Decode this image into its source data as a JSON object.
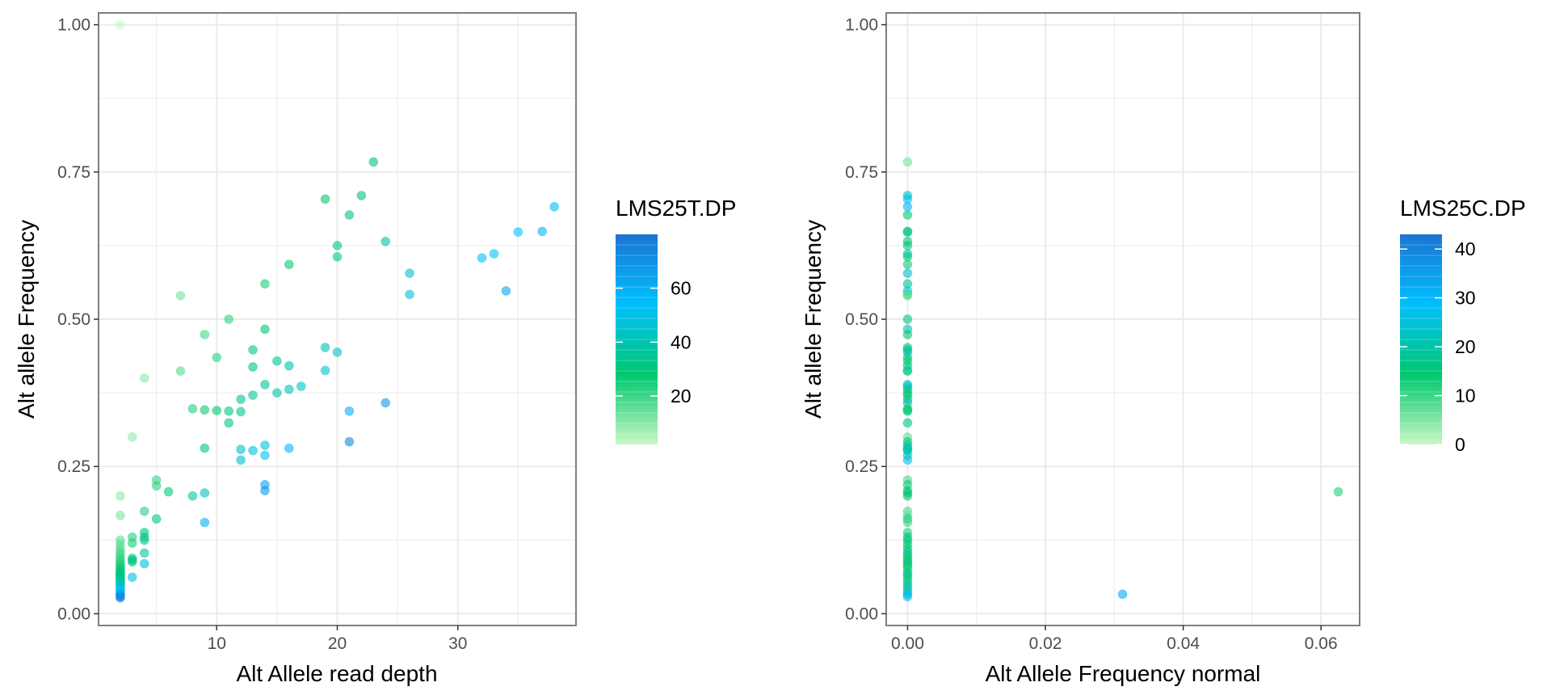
{
  "palette": {
    "grid": "#ebebeb",
    "frame": "#7f7f7f",
    "tick_text": "#4d4d4d",
    "title_text": "#000000",
    "colorscale": [
      "#c8f7c5",
      "#00c86e",
      "#00bfff",
      "#1c74d2"
    ]
  },
  "chart_data": [
    {
      "type": "scatter",
      "xlabel": "Alt Allele read depth",
      "ylabel": "Alt allele Frequency",
      "xlim": [
        0.2,
        39.8
      ],
      "ylim": [
        -0.02,
        1.02
      ],
      "xticks": [
        10,
        20,
        30
      ],
      "xtick_labels": [
        "10",
        "20",
        "30"
      ],
      "yticks": [
        0,
        0.25,
        0.5,
        0.75,
        1.0
      ],
      "ytick_labels": [
        "0.00",
        "0.25",
        "0.50",
        "0.75",
        "1.00"
      ],
      "grid": true,
      "legend": {
        "title": "LMS25T.DP",
        "range": [
          2,
          80
        ],
        "ticks": [
          20,
          40,
          60
        ],
        "tick_labels": [
          "20",
          "40",
          "60"
        ],
        "placement": "right"
      },
      "points": [
        [
          2,
          1.0,
          2
        ],
        [
          2,
          0.2,
          10
        ],
        [
          2,
          0.167,
          12
        ],
        [
          2,
          0.125,
          16
        ],
        [
          2,
          0.118,
          17
        ],
        [
          2,
          0.111,
          18
        ],
        [
          2,
          0.105,
          19
        ],
        [
          2,
          0.1,
          20
        ],
        [
          2,
          0.095,
          21
        ],
        [
          2,
          0.091,
          22
        ],
        [
          2,
          0.087,
          23
        ],
        [
          2,
          0.083,
          24
        ],
        [
          2,
          0.08,
          25
        ],
        [
          2,
          0.077,
          26
        ],
        [
          2,
          0.074,
          27
        ],
        [
          2,
          0.071,
          28
        ],
        [
          2,
          0.069,
          29
        ],
        [
          2,
          0.067,
          30
        ],
        [
          2,
          0.065,
          31
        ],
        [
          2,
          0.063,
          32
        ],
        [
          2,
          0.061,
          33
        ],
        [
          2,
          0.059,
          34
        ],
        [
          2,
          0.057,
          35
        ],
        [
          2,
          0.055,
          36
        ],
        [
          2,
          0.053,
          38
        ],
        [
          2,
          0.05,
          40
        ],
        [
          2,
          0.048,
          42
        ],
        [
          2,
          0.045,
          44
        ],
        [
          2,
          0.042,
          48
        ],
        [
          2,
          0.04,
          50
        ],
        [
          2,
          0.037,
          54
        ],
        [
          2,
          0.035,
          57
        ],
        [
          2,
          0.033,
          60
        ],
        [
          2,
          0.031,
          64
        ],
        [
          2,
          0.029,
          70
        ],
        [
          2,
          0.027,
          75
        ],
        [
          3,
          0.3,
          10
        ],
        [
          3,
          0.13,
          23
        ],
        [
          3,
          0.12,
          25
        ],
        [
          3,
          0.094,
          32
        ],
        [
          3,
          0.088,
          34
        ],
        [
          3,
          0.091,
          33
        ],
        [
          3,
          0.062,
          48
        ],
        [
          4,
          0.4,
          10
        ],
        [
          4,
          0.174,
          23
        ],
        [
          4,
          0.138,
          29
        ],
        [
          4,
          0.13,
          31
        ],
        [
          4,
          0.125,
          32
        ],
        [
          4,
          0.103,
          39
        ],
        [
          4,
          0.085,
          47
        ],
        [
          5,
          0.227,
          22
        ],
        [
          5,
          0.217,
          23
        ],
        [
          5,
          0.161,
          31
        ],
        [
          6,
          0.207,
          29
        ],
        [
          7,
          0.54,
          13
        ],
        [
          7,
          0.412,
          17
        ],
        [
          8,
          0.348,
          23
        ],
        [
          8,
          0.2,
          40
        ],
        [
          9,
          0.474,
          19
        ],
        [
          9,
          0.346,
          26
        ],
        [
          9,
          0.281,
          32
        ],
        [
          9,
          0.205,
          44
        ],
        [
          9,
          0.155,
          58
        ],
        [
          10,
          0.435,
          23
        ],
        [
          10,
          0.345,
          29
        ],
        [
          11,
          0.5,
          22
        ],
        [
          11,
          0.344,
          32
        ],
        [
          11,
          0.324,
          34
        ],
        [
          12,
          0.364,
          33
        ],
        [
          12,
          0.343,
          35
        ],
        [
          12,
          0.279,
          43
        ],
        [
          12,
          0.261,
          46
        ],
        [
          13,
          0.448,
          29
        ],
        [
          13,
          0.419,
          31
        ],
        [
          13,
          0.371,
          35
        ],
        [
          13,
          0.277,
          47
        ],
        [
          14,
          0.56,
          25
        ],
        [
          14,
          0.483,
          29
        ],
        [
          14,
          0.389,
          36
        ],
        [
          14,
          0.286,
          49
        ],
        [
          14,
          0.269,
          52
        ],
        [
          14,
          0.219,
          64
        ],
        [
          14,
          0.209,
          67
        ],
        [
          15,
          0.429,
          35
        ],
        [
          15,
          0.375,
          40
        ],
        [
          16,
          0.593,
          27
        ],
        [
          16,
          0.421,
          38
        ],
        [
          16,
          0.381,
          42
        ],
        [
          16,
          0.281,
          57
        ],
        [
          17,
          0.386,
          44
        ],
        [
          19,
          0.704,
          27
        ],
        [
          19,
          0.452,
          42
        ],
        [
          19,
          0.413,
          46
        ],
        [
          20,
          0.625,
          32
        ],
        [
          20,
          0.606,
          33
        ],
        [
          20,
          0.444,
          45
        ],
        [
          21,
          0.677,
          31
        ],
        [
          21,
          0.344,
          61
        ],
        [
          21,
          0.292,
          72
        ],
        [
          22,
          0.71,
          31
        ],
        [
          23,
          0.767,
          30
        ],
        [
          24,
          0.632,
          38
        ],
        [
          24,
          0.358,
          67
        ],
        [
          26,
          0.578,
          45
        ],
        [
          26,
          0.542,
          48
        ],
        [
          32,
          0.604,
          53
        ],
        [
          33,
          0.611,
          54
        ],
        [
          34,
          0.548,
          62
        ],
        [
          35,
          0.648,
          54
        ],
        [
          37,
          0.649,
          57
        ],
        [
          38,
          0.691,
          55
        ]
      ]
    },
    {
      "type": "scatter",
      "xlabel": "Alt Allele Frequency normal",
      "ylabel": "Alt allele Frequency",
      "xlim": [
        -0.0031,
        0.0656
      ],
      "ylim": [
        -0.02,
        1.02
      ],
      "xticks": [
        0,
        0.02,
        0.04,
        0.06
      ],
      "xtick_labels": [
        "0.00",
        "0.02",
        "0.04",
        "0.06"
      ],
      "yticks": [
        0,
        0.25,
        0.5,
        0.75,
        1.0
      ],
      "ytick_labels": [
        "0.00",
        "0.25",
        "0.50",
        "0.75",
        "1.00"
      ],
      "grid": true,
      "legend": {
        "title": "LMS25C.DP",
        "range": [
          0,
          43
        ],
        "ticks": [
          0,
          10,
          20,
          30,
          40
        ],
        "tick_labels": [
          "0",
          "10",
          "20",
          "30",
          "40"
        ],
        "placement": "right"
      },
      "points": [
        [
          0,
          0.767,
          6
        ],
        [
          0,
          0.71,
          24
        ],
        [
          0,
          0.704,
          27
        ],
        [
          0,
          0.691,
          30
        ],
        [
          0,
          0.677,
          14
        ],
        [
          0,
          0.649,
          20
        ],
        [
          0,
          0.648,
          16
        ],
        [
          0,
          0.632,
          17
        ],
        [
          0,
          0.625,
          15
        ],
        [
          0,
          0.611,
          22
        ],
        [
          0,
          0.606,
          14
        ],
        [
          0,
          0.593,
          13
        ],
        [
          0,
          0.578,
          24
        ],
        [
          0,
          0.56,
          18
        ],
        [
          0,
          0.548,
          26
        ],
        [
          0,
          0.542,
          12
        ],
        [
          0,
          0.54,
          7
        ],
        [
          0,
          0.5,
          16
        ],
        [
          0,
          0.483,
          22
        ],
        [
          0,
          0.474,
          14
        ],
        [
          0,
          0.452,
          13
        ],
        [
          0,
          0.448,
          15
        ],
        [
          0,
          0.444,
          21
        ],
        [
          0,
          0.435,
          16
        ],
        [
          0,
          0.429,
          14
        ],
        [
          0,
          0.421,
          15
        ],
        [
          0,
          0.413,
          24
        ],
        [
          0,
          0.412,
          13
        ],
        [
          0,
          0.389,
          22
        ],
        [
          0,
          0.386,
          26
        ],
        [
          0,
          0.381,
          16
        ],
        [
          0,
          0.375,
          18
        ],
        [
          0,
          0.371,
          14
        ],
        [
          0,
          0.364,
          16
        ],
        [
          0,
          0.358,
          20
        ],
        [
          0,
          0.348,
          13
        ],
        [
          0,
          0.346,
          12
        ],
        [
          0,
          0.344,
          15
        ],
        [
          0,
          0.324,
          16
        ],
        [
          0,
          0.3,
          7
        ],
        [
          0,
          0.292,
          14
        ],
        [
          0,
          0.286,
          20
        ],
        [
          0,
          0.281,
          16
        ],
        [
          0,
          0.279,
          23
        ],
        [
          0,
          0.277,
          22
        ],
        [
          0,
          0.269,
          21
        ],
        [
          0,
          0.261,
          26
        ],
        [
          0,
          0.227,
          9
        ],
        [
          0,
          0.219,
          13
        ],
        [
          0,
          0.209,
          15
        ],
        [
          0,
          0.205,
          16
        ],
        [
          0,
          0.2,
          14
        ],
        [
          0,
          0.174,
          9
        ],
        [
          0,
          0.167,
          7
        ],
        [
          0,
          0.161,
          13
        ],
        [
          0,
          0.155,
          10
        ],
        [
          0,
          0.138,
          12
        ],
        [
          0,
          0.13,
          15
        ],
        [
          0,
          0.125,
          16
        ],
        [
          0,
          0.118,
          14
        ],
        [
          0,
          0.111,
          15
        ],
        [
          0,
          0.105,
          18
        ],
        [
          0,
          0.1,
          16
        ],
        [
          0,
          0.095,
          13
        ],
        [
          0,
          0.091,
          14
        ],
        [
          0,
          0.087,
          17
        ],
        [
          0,
          0.083,
          15
        ],
        [
          0,
          0.08,
          14
        ],
        [
          0,
          0.074,
          12
        ],
        [
          0,
          0.069,
          16
        ],
        [
          0,
          0.065,
          18
        ],
        [
          0,
          0.059,
          15
        ],
        [
          0,
          0.053,
          17
        ],
        [
          0,
          0.048,
          19
        ],
        [
          0,
          0.042,
          20
        ],
        [
          0,
          0.037,
          22
        ],
        [
          0,
          0.033,
          25
        ],
        [
          0,
          0.029,
          27
        ],
        [
          0.0312,
          0.033,
          33
        ],
        [
          0.0625,
          0.207,
          12
        ]
      ]
    }
  ]
}
